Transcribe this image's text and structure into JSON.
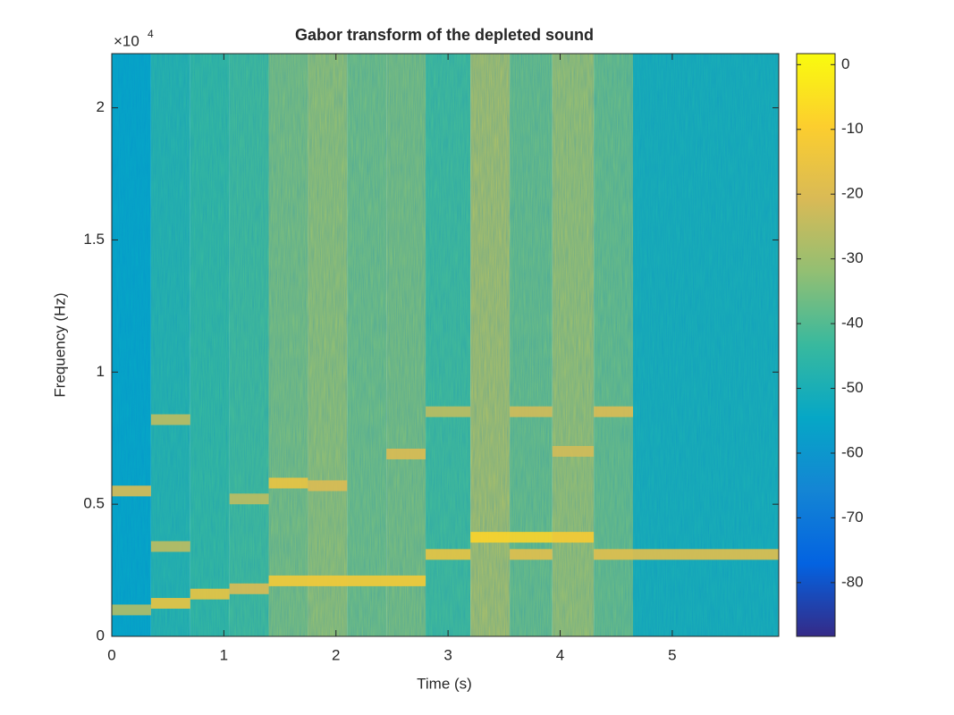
{
  "chart_data": {
    "type": "spectrogram",
    "title": "Gabor transform of the depleted sound",
    "x_label": "Time (s)",
    "y_label": "Frequency (Hz)",
    "y_multiplier": "×10",
    "y_multiplier_exp": "4",
    "xlim": [
      0,
      5.95
    ],
    "ylim": [
      0,
      22050
    ],
    "xticks": [
      0,
      1,
      2,
      3,
      4,
      5
    ],
    "yticks": [
      0,
      {
        "value": 5000,
        "label": "0.5"
      },
      {
        "value": 10000,
        "label": "1"
      },
      {
        "value": 15000,
        "label": "1.5"
      },
      {
        "value": 20000,
        "label": "2"
      }
    ],
    "clim": [
      -88.3,
      1.7
    ],
    "cticks": [
      0,
      -10,
      -20,
      -30,
      -40,
      -50,
      -60,
      -70,
      -80
    ],
    "colormap": [
      "#352a87",
      "#0363e1",
      "#1485d4",
      "#06a7c6",
      "#38b99e",
      "#92bf73",
      "#d9ba56",
      "#fcce2e",
      "#f9fb0e"
    ],
    "segments": [
      {
        "t0": 0,
        "t1": 0.35,
        "level": -55
      },
      {
        "t0": 0.35,
        "t1": 0.7,
        "level": -47
      },
      {
        "t0": 0.7,
        "t1": 1.05,
        "level": -44
      },
      {
        "t0": 1.05,
        "t1": 1.4,
        "level": -42
      },
      {
        "t0": 1.4,
        "t1": 1.75,
        "level": -35
      },
      {
        "t0": 1.75,
        "t1": 2.1,
        "level": -32
      },
      {
        "t0": 2.1,
        "t1": 2.45,
        "level": -36
      },
      {
        "t0": 2.45,
        "t1": 2.8,
        "level": -35
      },
      {
        "t0": 2.8,
        "t1": 3.2,
        "level": -42
      },
      {
        "t0": 3.2,
        "t1": 3.55,
        "level": -29
      },
      {
        "t0": 3.55,
        "t1": 3.93,
        "level": -37
      },
      {
        "t0": 3.93,
        "t1": 4.3,
        "level": -31
      },
      {
        "t0": 4.3,
        "t1": 4.65,
        "level": -37
      },
      {
        "t0": 4.65,
        "t1": 5.95,
        "level": -50
      }
    ],
    "notes": [
      {
        "t0": 0,
        "t1": 0.35,
        "freq": 1000,
        "level": -27
      },
      {
        "t0": 0,
        "t1": 0.35,
        "freq": 5500,
        "level": -20
      },
      {
        "t0": 0.35,
        "t1": 0.7,
        "freq": 1250,
        "level": -15
      },
      {
        "t0": 0.35,
        "t1": 0.7,
        "freq": 3400,
        "level": -25
      },
      {
        "t0": 0.35,
        "t1": 0.7,
        "freq": 8200,
        "level": -25
      },
      {
        "t0": 0.7,
        "t1": 1.05,
        "freq": 1600,
        "level": -15
      },
      {
        "t0": 1.05,
        "t1": 1.4,
        "freq": 1800,
        "level": -20
      },
      {
        "t0": 1.05,
        "t1": 1.4,
        "freq": 5200,
        "level": -25
      },
      {
        "t0": 1.4,
        "t1": 2.8,
        "freq": 2100,
        "level": -12
      },
      {
        "t0": 1.4,
        "t1": 1.75,
        "freq": 5800,
        "level": -15
      },
      {
        "t0": 1.75,
        "t1": 2.1,
        "freq": 5700,
        "level": -20
      },
      {
        "t0": 2.45,
        "t1": 2.8,
        "freq": 6900,
        "level": -20
      },
      {
        "t0": 2.8,
        "t1": 3.2,
        "freq": 3100,
        "level": -15
      },
      {
        "t0": 2.8,
        "t1": 3.2,
        "freq": 8500,
        "level": -25
      },
      {
        "t0": 3.2,
        "t1": 3.93,
        "freq": 3750,
        "level": -8
      },
      {
        "t0": 3.55,
        "t1": 3.93,
        "freq": 3100,
        "level": -18
      },
      {
        "t0": 3.55,
        "t1": 3.93,
        "freq": 8500,
        "level": -22
      },
      {
        "t0": 3.93,
        "t1": 4.3,
        "freq": 3750,
        "level": -11
      },
      {
        "t0": 3.93,
        "t1": 4.3,
        "freq": 7000,
        "level": -22
      },
      {
        "t0": 4.3,
        "t1": 5.95,
        "freq": 3100,
        "level": -18
      },
      {
        "t0": 4.3,
        "t1": 4.65,
        "freq": 8500,
        "level": -20
      }
    ]
  }
}
